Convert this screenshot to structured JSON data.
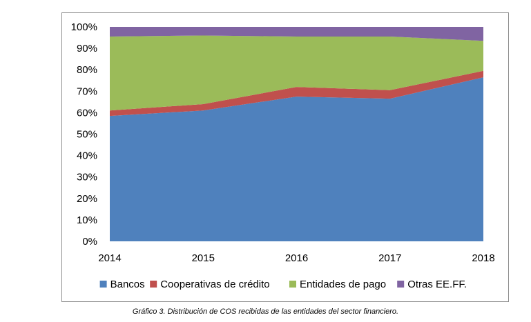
{
  "caption": "Gráfico 3.  Distribución de COS recibidas de las entidades del sector financiero.",
  "chart_data": {
    "type": "area",
    "stacked": "percent",
    "x": [
      "2014",
      "2015",
      "2016",
      "2017",
      "2018"
    ],
    "ylim": [
      0,
      100
    ],
    "yticks": [
      "0%",
      "10%",
      "20%",
      "30%",
      "40%",
      "50%",
      "60%",
      "70%",
      "80%",
      "90%",
      "100%"
    ],
    "legend_position": "bottom",
    "series": [
      {
        "name": "Bancos",
        "color": "#4f81bd",
        "values": [
          58.5,
          61,
          67.5,
          66.5,
          76.5
        ]
      },
      {
        "name": "Cooperativas de crédito",
        "color": "#c0504d",
        "values": [
          2.5,
          3,
          4.5,
          4,
          3
        ]
      },
      {
        "name": "Entidades de pago",
        "color": "#9bbb59",
        "values": [
          34.5,
          32,
          23.5,
          25,
          14
        ]
      },
      {
        "name": "Otras EE.FF.",
        "color": "#8064a2",
        "values": [
          4.5,
          4,
          4.5,
          4.5,
          6.5
        ]
      }
    ]
  }
}
